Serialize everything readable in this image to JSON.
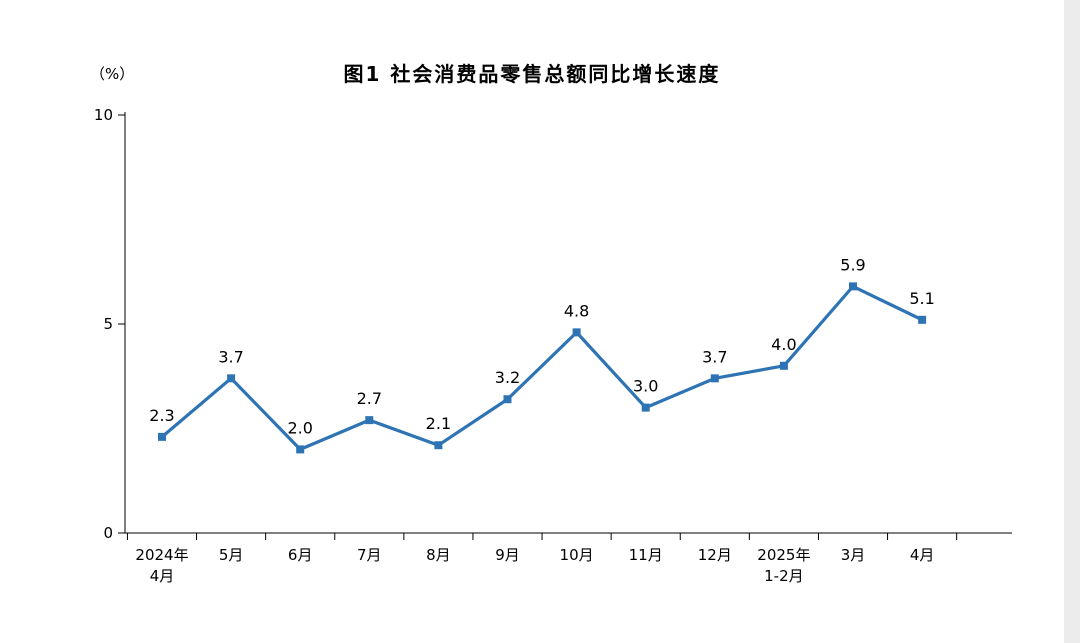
{
  "chart_data": {
    "type": "line",
    "title": "图1 社会消费品零售总额同比增长速度",
    "ylabel": "（%）",
    "xlabel": "",
    "categories": [
      "2024年\n4月",
      "5月",
      "6月",
      "7月",
      "8月",
      "9月",
      "10月",
      "11月",
      "12月",
      "2025年\n1-2月",
      "3月",
      "4月"
    ],
    "values": [
      2.3,
      3.7,
      2.0,
      2.7,
      2.1,
      3.2,
      4.8,
      3.0,
      3.7,
      4.0,
      5.9,
      5.1
    ],
    "ylim": [
      0,
      10
    ],
    "yticks": [
      0,
      5,
      10
    ],
    "line_color": "#2E74B5",
    "marker": "square",
    "grid": false,
    "legend": "none"
  }
}
